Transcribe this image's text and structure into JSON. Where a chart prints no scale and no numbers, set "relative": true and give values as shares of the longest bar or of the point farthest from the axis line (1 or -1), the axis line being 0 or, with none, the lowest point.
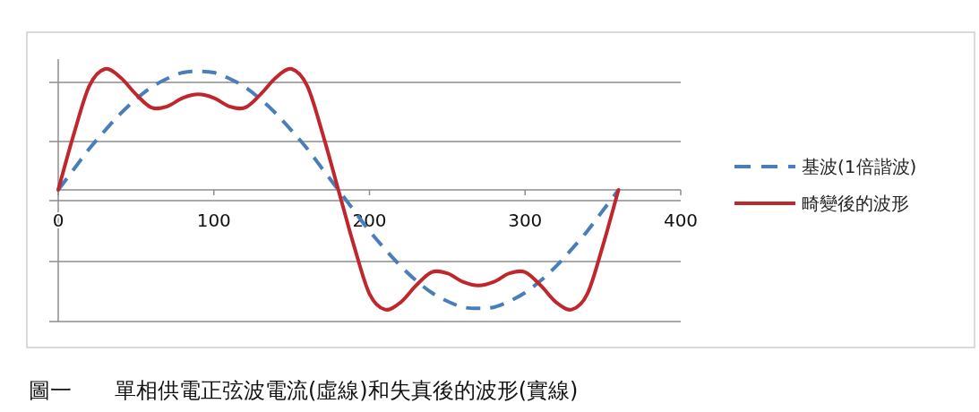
{
  "chart_data": {
    "type": "line",
    "relative": true,
    "x": [
      0,
      10,
      20,
      30,
      40,
      50,
      60,
      70,
      80,
      90,
      100,
      110,
      120,
      130,
      140,
      150,
      160,
      170,
      180,
      190,
      200,
      210,
      220,
      230,
      240,
      250,
      260,
      270,
      280,
      290,
      300,
      310,
      320,
      330,
      340,
      350,
      360
    ],
    "xlim": [
      0,
      400
    ],
    "xticks": [
      0,
      100,
      200,
      300,
      400
    ],
    "grid": "y",
    "legend": "right",
    "series": [
      {
        "name": "基波(1倍諧波)",
        "color": "#4a7ebb",
        "line_style": "dashed",
        "values": [
          0,
          0.17,
          0.34,
          0.49,
          0.63,
          0.75,
          0.85,
          0.92,
          0.97,
          0.98,
          0.97,
          0.92,
          0.85,
          0.75,
          0.63,
          0.49,
          0.34,
          0.17,
          0,
          -0.17,
          -0.34,
          -0.49,
          -0.63,
          -0.75,
          -0.85,
          -0.92,
          -0.97,
          -0.98,
          -0.97,
          -0.92,
          -0.85,
          -0.75,
          -0.63,
          -0.49,
          -0.34,
          -0.17,
          0
        ]
      },
      {
        "name": "畸變後的波形",
        "color": "#c0272d",
        "line_style": "solid",
        "values": [
          0,
          0.46,
          0.86,
          1,
          0.93,
          0.79,
          0.68,
          0.69,
          0.76,
          0.79,
          0.76,
          0.69,
          0.68,
          0.79,
          0.93,
          1,
          0.86,
          0.46,
          0,
          -0.46,
          -0.86,
          -0.99,
          -0.93,
          -0.79,
          -0.68,
          -0.69,
          -0.76,
          -0.79,
          -0.76,
          -0.69,
          -0.68,
          -0.79,
          -0.93,
          -0.99,
          -0.86,
          -0.46,
          0
        ]
      }
    ],
    "annotations": [
      "圖一　　單相供電正弦波電流(虛線)和失真後的波形(實線)"
    ]
  }
}
